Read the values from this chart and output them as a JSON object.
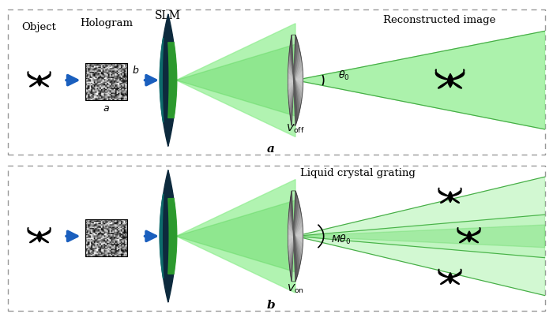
{
  "bg_color": "#ffffff",
  "green_light": "#90EE90",
  "green_med": "#5cd65c",
  "green_dark": "#228B22",
  "blue_arrow": "#1a5fbe",
  "slm_dark": "#0d2a3d",
  "slm_teal": "#0d6b6b",
  "slm_green": "#2ea02e",
  "lens_dark": "#444444",
  "lens_mid": "#888888",
  "lens_light": "#bbbbbb",
  "panel_a_label": "a",
  "panel_b_label": "b",
  "slm_label": "SLM",
  "object_label": "Object",
  "hologram_label": "Hologram",
  "recon_label": "Reconstructed image",
  "lcg_label": "Liquid crystal grating",
  "voff_label": "$V_{\\mathrm{off}}$",
  "von_label": "$V_{\\mathrm{on}}$",
  "theta0_label": "$\\theta_0$",
  "mtheta0_label": "$M\\theta_0$",
  "a_label": "$a$",
  "b_label": "$b$",
  "border_dash": [
    4,
    4
  ]
}
